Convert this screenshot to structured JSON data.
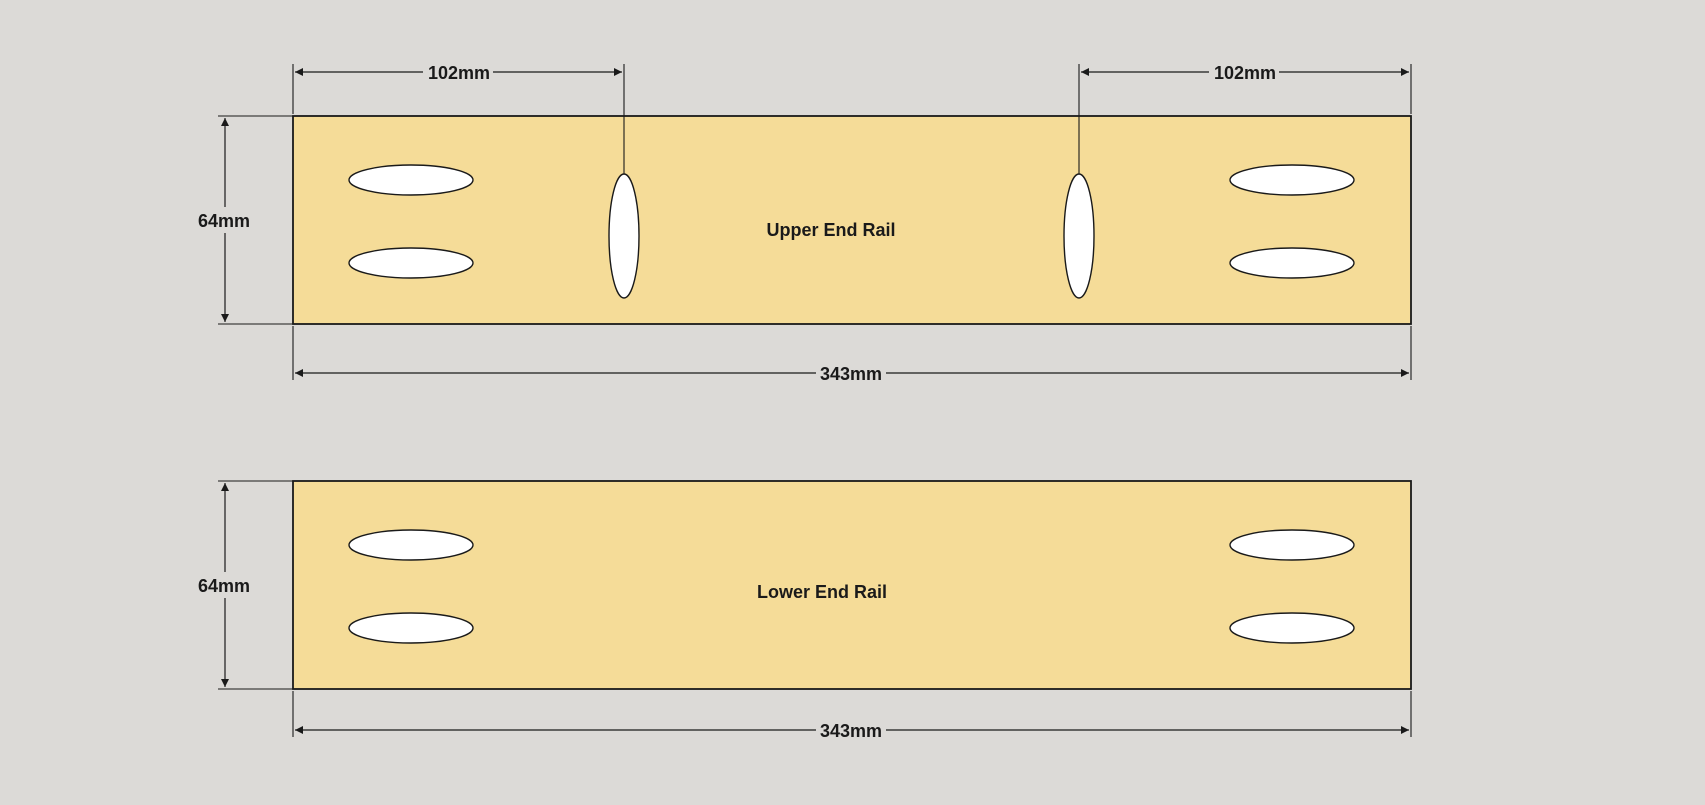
{
  "colors": {
    "background": "#dcdad7",
    "board_fill": "#f5dc98",
    "outline": "#1a1a1a",
    "hole_fill": "#ffffff"
  },
  "upper_rail": {
    "label": "Upper End Rail",
    "length_label": "343mm",
    "height_label": "64mm",
    "left_offset_label": "102mm",
    "right_offset_label": "102mm",
    "slot_count": 4,
    "vertical_slot_count": 2
  },
  "lower_rail": {
    "label": "Lower End Rail",
    "length_label": "343mm",
    "height_label": "64mm",
    "slot_count": 4
  }
}
